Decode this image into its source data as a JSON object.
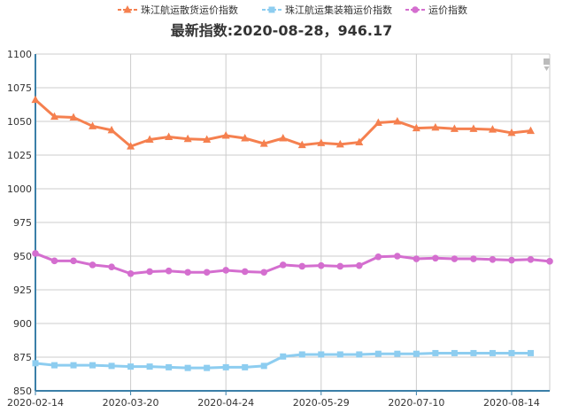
{
  "colors": {
    "bulk": "#f5804f",
    "container": "#8dcdf0",
    "freight": "#d46ecf",
    "grid": "#cccccc",
    "axis": "#3b7fa8",
    "toolbox": "#bbbbbb"
  },
  "toolbox": {
    "icon": "restore-icon"
  },
  "chart_data": {
    "type": "line",
    "title": "最新指数:2020-08-28，946.17",
    "ylim": [
      850,
      1100
    ],
    "yticks": [
      850,
      875,
      900,
      925,
      950,
      975,
      1000,
      1025,
      1050,
      1075,
      1100
    ],
    "xtick_labels": [
      "2020-02-14",
      "2020-03-20",
      "2020-04-24",
      "2020-05-29",
      "2020-07-10",
      "2020-08-14"
    ],
    "xtick_index": [
      0,
      5,
      10,
      15,
      20,
      25
    ],
    "grid": true,
    "legend_position": "top-center",
    "series": [
      {
        "name": "珠江航运散货运价指数",
        "color_key": "bulk",
        "marker": "triangle",
        "values": [
          1066,
          1053.5,
          1053,
          1046.5,
          1043.5,
          1031.5,
          1036.5,
          1038.5,
          1037,
          1036.5,
          1039.5,
          1037.5,
          1033.5,
          1037.5,
          1032.5,
          1034,
          1033,
          1034.5,
          1049,
          1050,
          1045,
          1045.5,
          1044.5,
          1044.5,
          1044,
          1041.5,
          1043
        ]
      },
      {
        "name": "珠江航运集装箱运价指数",
        "color_key": "container",
        "marker": "square",
        "values": [
          870.5,
          869,
          869,
          869,
          868.5,
          868,
          868,
          867.5,
          867,
          867,
          867.5,
          867.5,
          868.5,
          875.5,
          877,
          877,
          877,
          877,
          877.5,
          877.5,
          877.5,
          878,
          878,
          878,
          878,
          878,
          878
        ]
      },
      {
        "name": "运价指数",
        "color_key": "freight",
        "marker": "circle",
        "values": [
          952,
          946.5,
          946.5,
          943.5,
          942,
          937,
          938.5,
          939,
          938,
          938,
          939.5,
          938.5,
          938,
          943.5,
          942.5,
          943,
          942.5,
          943,
          949.5,
          950,
          948,
          948.5,
          948,
          948,
          947.5,
          947,
          947.5,
          946.17
        ]
      }
    ]
  }
}
